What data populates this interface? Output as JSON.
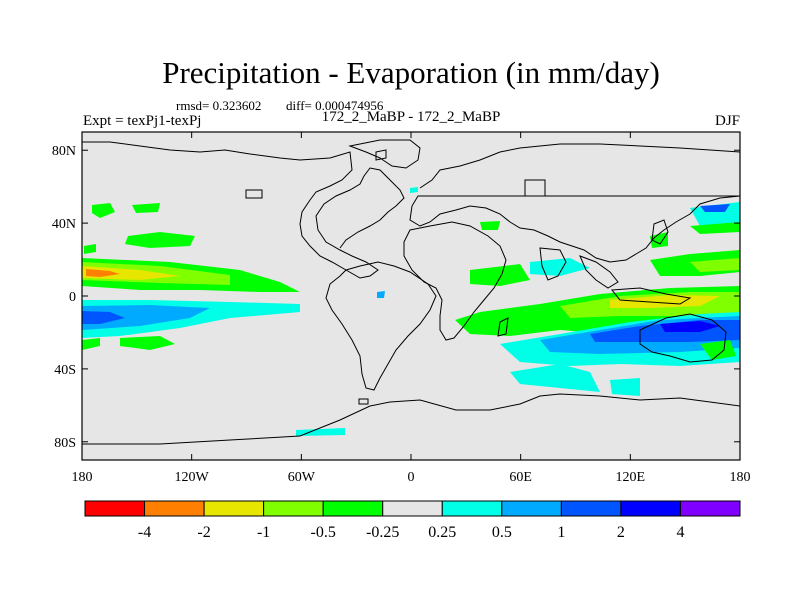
{
  "title": "Precipitation - Evaporation (in mm/day)",
  "stats": {
    "rmsd_label": "rmsd= 0.323602",
    "diff_label": "diff= 0.000474956"
  },
  "left_label": "Expt = texPj1-texPj",
  "center_label": "172_2_MaBP - 172_2_MaBP",
  "season": "DJF",
  "lat_ticks": [
    "80N",
    "40N",
    "0",
    "40S",
    "80S"
  ],
  "lon_ticks": [
    "180",
    "120W",
    "60W",
    "0",
    "60E",
    "120E",
    "180"
  ],
  "colorbar": {
    "colors": [
      "#ff0000",
      "#ff8000",
      "#e6e600",
      "#80ff00",
      "#00ff00",
      "#e6e6e6",
      "#00ffe6",
      "#00aaff",
      "#0055ff",
      "#0000ff",
      "#8000ff"
    ],
    "labels": [
      "-4",
      "-2",
      "-1",
      "-0.5",
      "-0.25",
      "0.25",
      "0.5",
      "1",
      "2",
      "4"
    ]
  }
}
